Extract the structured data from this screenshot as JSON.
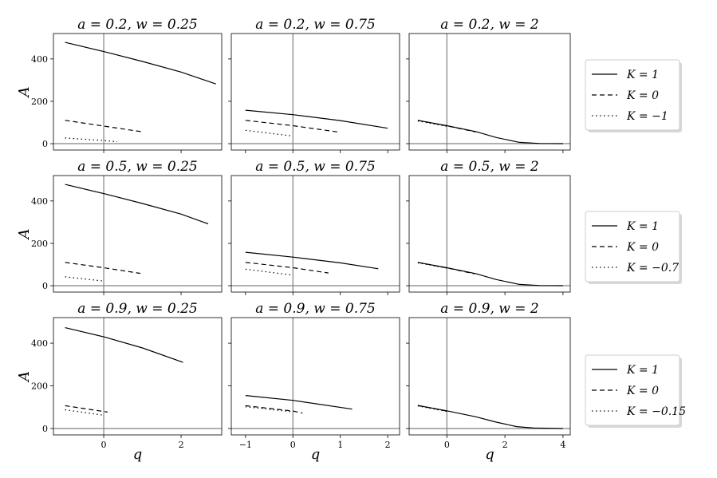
{
  "chart_data": [
    {
      "type": "line",
      "title": "a = 0.2, w = 0.25",
      "ylabel": "A",
      "xlabel": "",
      "row": 0,
      "col": 0,
      "series": [
        {
          "name": "K = 1",
          "style": "solid",
          "x": [
            -1.0,
            0,
            1,
            2,
            2.9
          ],
          "y": [
            478,
            435,
            388,
            338,
            282
          ]
        },
        {
          "name": "K = 0",
          "style": "dashed",
          "x": [
            -1.0,
            0,
            1.0
          ],
          "y": [
            110,
            83,
            56
          ]
        },
        {
          "name": "K = −1",
          "style": "dotted",
          "x": [
            -1.0,
            0,
            0.35
          ],
          "y": [
            27,
            15,
            9
          ]
        }
      ]
    },
    {
      "type": "line",
      "title": "a = 0.2, w = 0.75",
      "ylabel": "",
      "xlabel": "",
      "row": 0,
      "col": 1,
      "series": [
        {
          "name": "K = 1",
          "style": "solid",
          "x": [
            -1.0,
            0,
            1,
            2
          ],
          "y": [
            158,
            137,
            109,
            73
          ]
        },
        {
          "name": "K = 0",
          "style": "dashed",
          "x": [
            -1.0,
            0,
            0.95
          ],
          "y": [
            110,
            85,
            55
          ]
        },
        {
          "name": "K = −1",
          "style": "dotted",
          "x": [
            -1.0,
            0
          ],
          "y": [
            63,
            36
          ]
        }
      ]
    },
    {
      "type": "line",
      "title": "a = 0.2, w = 2",
      "ylabel": "",
      "xlabel": "",
      "row": 0,
      "col": 2,
      "series": [
        {
          "name": "K = 1",
          "style": "solid",
          "x": [
            -1.0,
            0,
            1.0,
            1.7,
            2.5,
            3.2,
            4.0
          ],
          "y": [
            110,
            85,
            57,
            29,
            6,
            1,
            0
          ]
        },
        {
          "name": "K = 0",
          "style": "dashed",
          "x": [
            -1.0,
            0,
            1.0
          ],
          "y": [
            110,
            84,
            55
          ]
        },
        {
          "name": "K = −1",
          "style": "dotted",
          "x": [
            -1.0,
            0
          ],
          "y": [
            107,
            82
          ]
        }
      ]
    },
    {
      "type": "line",
      "title": "a = 0.5, w = 0.25",
      "ylabel": "A",
      "xlabel": "",
      "row": 1,
      "col": 0,
      "series": [
        {
          "name": "K = 1",
          "style": "solid",
          "x": [
            -1.0,
            0,
            1,
            2,
            2.7
          ],
          "y": [
            478,
            435,
            388,
            338,
            292
          ]
        },
        {
          "name": "K = 0",
          "style": "dashed",
          "x": [
            -1.0,
            0,
            0.95
          ],
          "y": [
            110,
            85,
            58
          ]
        },
        {
          "name": "K = −0.7",
          "style": "dotted",
          "x": [
            -1.0,
            0
          ],
          "y": [
            42,
            22
          ]
        }
      ]
    },
    {
      "type": "line",
      "title": "a = 0.5, w = 0.75",
      "ylabel": "",
      "xlabel": "",
      "row": 1,
      "col": 1,
      "series": [
        {
          "name": "K = 1",
          "style": "solid",
          "x": [
            -1.0,
            0,
            1,
            1.8
          ],
          "y": [
            158,
            135,
            108,
            80
          ]
        },
        {
          "name": "K = 0",
          "style": "dashed",
          "x": [
            -1.0,
            0,
            0.75
          ],
          "y": [
            110,
            85,
            60
          ]
        },
        {
          "name": "K = −0.7",
          "style": "dotted",
          "x": [
            -1.0,
            0
          ],
          "y": [
            78,
            50
          ]
        }
      ]
    },
    {
      "type": "line",
      "title": "a = 0.5, w = 2",
      "ylabel": "",
      "xlabel": "",
      "row": 1,
      "col": 2,
      "series": [
        {
          "name": "K = 1",
          "style": "solid",
          "x": [
            -1.0,
            0,
            1.0,
            1.7,
            2.5,
            3.2,
            4.0
          ],
          "y": [
            110,
            85,
            57,
            29,
            6,
            1,
            0
          ]
        },
        {
          "name": "K = 0",
          "style": "dashed",
          "x": [
            -1.0,
            0,
            0.95
          ],
          "y": [
            110,
            84,
            56
          ]
        },
        {
          "name": "K = −0.7",
          "style": "dotted",
          "x": [
            -1.0,
            0
          ],
          "y": [
            108,
            83
          ]
        }
      ]
    },
    {
      "type": "line",
      "title": "a = 0.9, w = 0.25",
      "ylabel": "A",
      "xlabel": "q",
      "row": 2,
      "col": 0,
      "series": [
        {
          "name": "K = 1",
          "style": "solid",
          "x": [
            -1.0,
            0,
            1,
            2.05
          ],
          "y": [
            473,
            430,
            378,
            310
          ]
        },
        {
          "name": "K = 0",
          "style": "dashed",
          "x": [
            -1.0,
            0.1
          ],
          "y": [
            107,
            77
          ]
        },
        {
          "name": "K = −0.15",
          "style": "dotted",
          "x": [
            -1.0,
            0
          ],
          "y": [
            88,
            62
          ]
        }
      ]
    },
    {
      "type": "line",
      "title": "a = 0.9, w = 0.75",
      "ylabel": "",
      "xlabel": "q",
      "row": 2,
      "col": 1,
      "series": [
        {
          "name": "K = 1",
          "style": "solid",
          "x": [
            -1.0,
            0,
            1.25
          ],
          "y": [
            155,
            132,
            91
          ]
        },
        {
          "name": "K = 0",
          "style": "dashed",
          "x": [
            -1.0,
            0,
            0.2
          ],
          "y": [
            107,
            82,
            72
          ]
        },
        {
          "name": "K = −0.15",
          "style": "dotted",
          "x": [
            -1.0,
            0
          ],
          "y": [
            102,
            78
          ]
        }
      ]
    },
    {
      "type": "line",
      "title": "a = 0.9, w = 2",
      "ylabel": "",
      "xlabel": "q",
      "row": 2,
      "col": 2,
      "series": [
        {
          "name": "K = 1",
          "style": "solid",
          "x": [
            -1.0,
            0,
            1.0,
            1.7,
            2.4,
            3.0,
            4.0
          ],
          "y": [
            108,
            83,
            55,
            30,
            9,
            2,
            0
          ]
        },
        {
          "name": "K = 0",
          "style": "dashed",
          "x": [
            -1.0,
            0
          ],
          "y": [
            108,
            82
          ]
        },
        {
          "name": "K = −0.15",
          "style": "dotted",
          "x": [
            -1.0,
            0
          ],
          "y": [
            106,
            80
          ]
        }
      ]
    }
  ],
  "legends": [
    {
      "row": 0,
      "entries": [
        {
          "label": "K = 1",
          "style": "solid"
        },
        {
          "label": "K = 0",
          "style": "dashed"
        },
        {
          "label": "K = −1",
          "style": "dotted"
        }
      ]
    },
    {
      "row": 1,
      "entries": [
        {
          "label": "K = 1",
          "style": "solid"
        },
        {
          "label": "K = 0",
          "style": "dashed"
        },
        {
          "label": "K = −0.7",
          "style": "dotted"
        }
      ]
    },
    {
      "row": 2,
      "entries": [
        {
          "label": "K = 1",
          "style": "solid"
        },
        {
          "label": "K = 0",
          "style": "dashed"
        },
        {
          "label": "K = −0.15",
          "style": "dotted"
        }
      ]
    }
  ],
  "axes": {
    "ylim": [
      -30,
      520
    ],
    "yticks": [
      0,
      200,
      400
    ],
    "col_xlim": [
      [
        -1.3,
        3.05
      ],
      [
        -1.3,
        2.25
      ],
      [
        -1.3,
        4.25
      ]
    ],
    "col_xticks": [
      [
        0,
        2
      ],
      [
        -1,
        0,
        1,
        2
      ],
      [
        0,
        2,
        4
      ]
    ],
    "reference_lines": {
      "x": 0,
      "y": 0
    },
    "grid": false,
    "legend_placement": "right of each row"
  }
}
